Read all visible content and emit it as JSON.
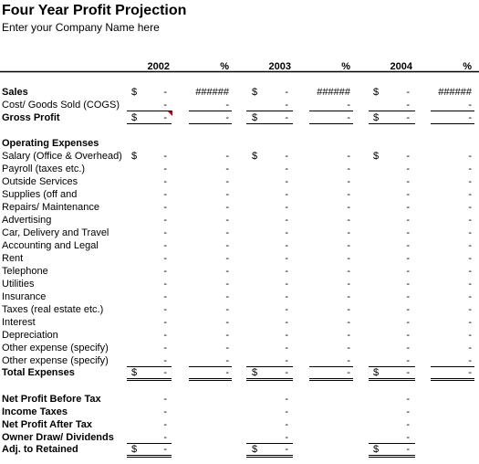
{
  "header": {
    "title": "Four Year Profit Projection",
    "subtitle": "Enter your Company Name here"
  },
  "table": {
    "columns": [
      "2002",
      "%",
      "2003",
      "%",
      "2004",
      "%"
    ],
    "rows": [
      {
        "label": "Sales",
        "bold": true,
        "cells": [
          "$",
          "-",
          "######",
          "$",
          "-",
          "######",
          "$",
          "-",
          "######"
        ]
      },
      {
        "label": "Cost/ Goods Sold (COGS)",
        "cells": [
          null,
          "-",
          "-",
          null,
          "-",
          "-",
          null,
          "-",
          "-"
        ]
      },
      {
        "label": "Gross Profit",
        "bold": true,
        "cells": [
          "$",
          "-",
          "-",
          "$",
          "-",
          "-",
          "$",
          "-",
          "-"
        ]
      },
      {
        "label": "Operating Expenses",
        "bold": true
      },
      {
        "label": "Salary (Office & Overhead)",
        "cells": [
          "$",
          "-",
          "-",
          "$",
          "-",
          "-",
          "$",
          "-",
          "-"
        ]
      },
      {
        "label": "Payroll (taxes etc.)",
        "cells": [
          null,
          "-",
          "-",
          null,
          "-",
          "-",
          null,
          "-",
          "-"
        ]
      },
      {
        "label": "Outside Services",
        "cells": [
          null,
          "-",
          "-",
          null,
          "-",
          "-",
          null,
          "-",
          "-"
        ]
      },
      {
        "label": "Supplies (off and",
        "cells": [
          null,
          "-",
          "-",
          null,
          "-",
          "-",
          null,
          "-",
          "-"
        ]
      },
      {
        "label": "Repairs/ Maintenance",
        "cells": [
          null,
          "-",
          "-",
          null,
          "-",
          "-",
          null,
          "-",
          "-"
        ]
      },
      {
        "label": "Advertising",
        "cells": [
          null,
          "-",
          "-",
          null,
          "-",
          "-",
          null,
          "-",
          "-"
        ]
      },
      {
        "label": "Car, Delivery and Travel",
        "cells": [
          null,
          "-",
          "-",
          null,
          "-",
          "-",
          null,
          "-",
          "-"
        ]
      },
      {
        "label": "Accounting and Legal",
        "cells": [
          null,
          "-",
          "-",
          null,
          "-",
          "-",
          null,
          "-",
          "-"
        ]
      },
      {
        "label": "Rent",
        "cells": [
          null,
          "-",
          "-",
          null,
          "-",
          "-",
          null,
          "-",
          "-"
        ]
      },
      {
        "label": "Telephone",
        "cells": [
          null,
          "-",
          "-",
          null,
          "-",
          "-",
          null,
          "-",
          "-"
        ]
      },
      {
        "label": "Utilities",
        "cells": [
          null,
          "-",
          "-",
          null,
          "-",
          "-",
          null,
          "-",
          "-"
        ]
      },
      {
        "label": "Insurance",
        "cells": [
          null,
          "-",
          "-",
          null,
          "-",
          "-",
          null,
          "-",
          "-"
        ]
      },
      {
        "label": "Taxes (real estate etc.)",
        "cells": [
          null,
          "-",
          "-",
          null,
          "-",
          "-",
          null,
          "-",
          "-"
        ]
      },
      {
        "label": "Interest",
        "cells": [
          null,
          "-",
          "-",
          null,
          "-",
          "-",
          null,
          "-",
          "-"
        ]
      },
      {
        "label": "Depreciation",
        "cells": [
          null,
          "-",
          "-",
          null,
          "-",
          "-",
          null,
          "-",
          "-"
        ]
      },
      {
        "label": "Other expense (specify)",
        "cells": [
          null,
          "-",
          "-",
          null,
          "-",
          "-",
          null,
          "-",
          "-"
        ]
      },
      {
        "label": "Other expense (specify)",
        "cells": [
          null,
          "-",
          "-",
          null,
          "-",
          "-",
          null,
          "-",
          "-"
        ]
      },
      {
        "label": "Total Expenses",
        "bold": true,
        "cells": [
          "$",
          "-",
          "-",
          "$",
          "-",
          "-",
          "$",
          "-",
          "-"
        ]
      },
      {
        "label": "Net Profit Before Tax",
        "bold": true,
        "cells": [
          null,
          "-",
          null,
          null,
          "-",
          null,
          null,
          "-",
          null
        ]
      },
      {
        "label": "Income Taxes",
        "bold": true,
        "cells": [
          null,
          "-",
          null,
          null,
          "-",
          null,
          null,
          "-",
          null
        ]
      },
      {
        "label": "Net Profit After Tax",
        "bold": true,
        "cells": [
          null,
          "-",
          null,
          null,
          "-",
          null,
          null,
          "-",
          null
        ]
      },
      {
        "label": "Owner Draw/ Dividends",
        "bold": true,
        "cells": [
          null,
          "-",
          null,
          null,
          "-",
          null,
          null,
          "-",
          null
        ]
      },
      {
        "label": "Adj. to Retained",
        "bold": true,
        "cells": [
          "$",
          "-",
          null,
          "$",
          "-",
          null,
          "$",
          "-",
          null
        ]
      }
    ]
  }
}
